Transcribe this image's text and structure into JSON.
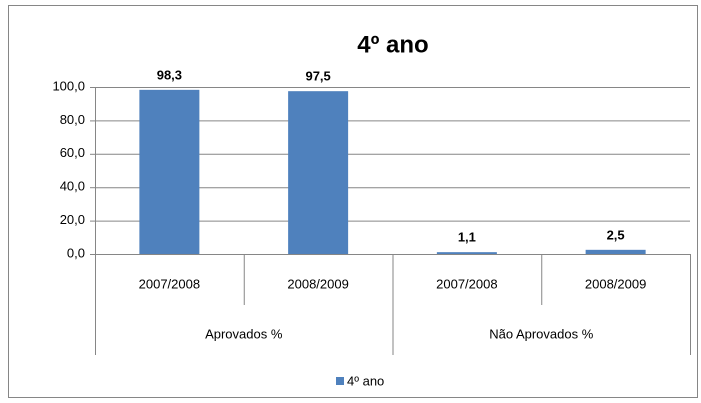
{
  "chart_data": {
    "type": "bar",
    "title": "4º ano",
    "categories": [
      "2007/2008",
      "2008/2009",
      "2007/2008",
      "2008/2009"
    ],
    "group_labels": [
      "Aprovados %",
      "Não Aprovados %"
    ],
    "series": [
      {
        "name": "4º ano",
        "color": "#4f81bd",
        "values": [
          98.3,
          97.5,
          1.1,
          2.5
        ],
        "value_labels": [
          "98,3",
          "97,5",
          "1,1",
          "2,5"
        ]
      }
    ],
    "ylim": [
      0,
      100
    ],
    "yticks": [
      {
        "value": 0,
        "label": "0,0"
      },
      {
        "value": 20,
        "label": "20,0"
      },
      {
        "value": 40,
        "label": "40,0"
      },
      {
        "value": 60,
        "label": "60,0"
      },
      {
        "value": 80,
        "label": "80,0"
      },
      {
        "value": 100,
        "label": "100,0"
      }
    ],
    "grid": true,
    "legend": "bottom"
  }
}
